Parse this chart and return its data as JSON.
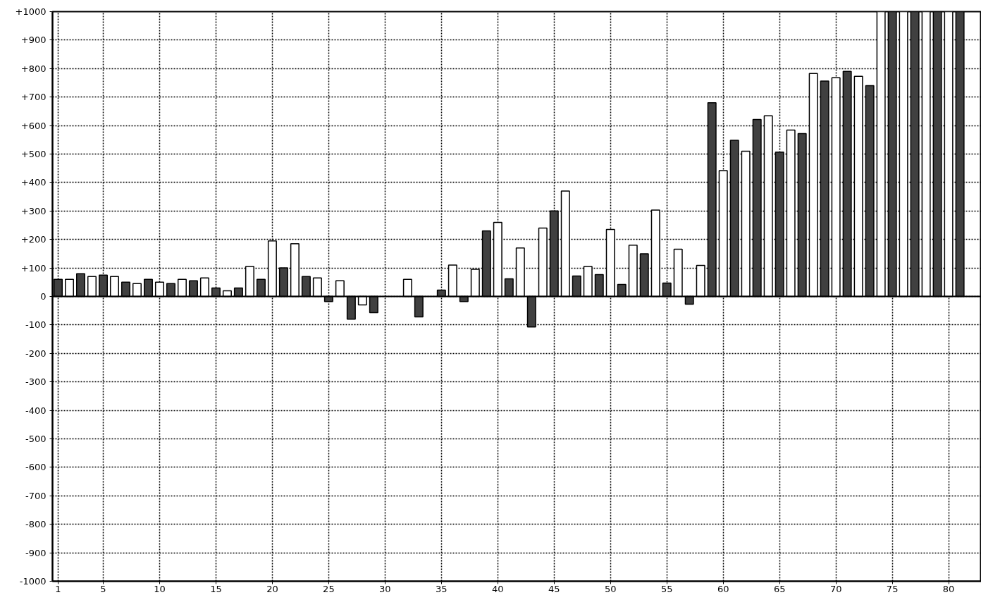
{
  "chart_data": {
    "type": "bar",
    "x": [
      1,
      2,
      3,
      4,
      5,
      6,
      7,
      8,
      9,
      10,
      11,
      12,
      13,
      14,
      15,
      16,
      17,
      18,
      19,
      20,
      21,
      22,
      23,
      24,
      25,
      26,
      27,
      28,
      29,
      30,
      31,
      32,
      33,
      34,
      35,
      36,
      37,
      38,
      39,
      40,
      41,
      42,
      43,
      44,
      45,
      46,
      47,
      48,
      49,
      50,
      51,
      52,
      53,
      54,
      55,
      56,
      57,
      58,
      59,
      60,
      61,
      62,
      63,
      64,
      65,
      66,
      67,
      68,
      69,
      70,
      71,
      72,
      73,
      74,
      75,
      76,
      77,
      78,
      79,
      80,
      81
    ],
    "series": [
      {
        "color": "#404040",
        "values": [
          60,
          null,
          80,
          null,
          75,
          null,
          50,
          null,
          60,
          null,
          45,
          null,
          55,
          null,
          30,
          null,
          30,
          null,
          60,
          null,
          100,
          null,
          70,
          null,
          -18,
          null,
          -80,
          null,
          -57,
          null,
          null,
          null,
          -72,
          null,
          22,
          null,
          -18,
          null,
          230,
          null,
          62,
          null,
          -107,
          null,
          300,
          null,
          72,
          null,
          77,
          null,
          42,
          null,
          150,
          null,
          47,
          null,
          -27,
          null,
          680,
          null,
          548,
          null,
          621,
          null,
          507,
          null,
          572,
          null,
          756,
          null,
          790,
          null,
          740,
          null,
          1000,
          null,
          1000,
          null,
          1000,
          null,
          1000
        ]
      },
      {
        "color": "#ffffff",
        "values": [
          null,
          60,
          null,
          70,
          null,
          70,
          null,
          45,
          null,
          50,
          null,
          60,
          null,
          65,
          null,
          20,
          null,
          105,
          null,
          195,
          null,
          185,
          null,
          65,
          null,
          55,
          null,
          -30,
          null,
          null,
          null,
          60,
          null,
          null,
          null,
          110,
          null,
          95,
          null,
          260,
          null,
          170,
          null,
          240,
          null,
          370,
          null,
          105,
          null,
          235,
          null,
          180,
          null,
          303,
          null,
          166,
          null,
          109,
          null,
          442,
          null,
          510,
          null,
          634,
          null,
          584,
          null,
          783,
          null,
          768,
          null,
          773,
          null,
          1000,
          null,
          1000,
          null,
          1000,
          null,
          1000,
          null
        ]
      }
    ],
    "xlim": [
      0.5,
      82.9
    ],
    "xticks": [
      1,
      5,
      10,
      15,
      20,
      25,
      30,
      35,
      40,
      45,
      50,
      55,
      60,
      65,
      70,
      75,
      80
    ],
    "ylim": [
      -1000,
      1000
    ],
    "yticks": [
      {
        "value": -1000,
        "label": "-1000"
      },
      {
        "value": -900,
        "label": "-900"
      },
      {
        "value": -800,
        "label": "-800"
      },
      {
        "value": -700,
        "label": "-700"
      },
      {
        "value": -600,
        "label": "-600"
      },
      {
        "value": -500,
        "label": "-500"
      },
      {
        "value": -400,
        "label": "-400"
      },
      {
        "value": -300,
        "label": "-300"
      },
      {
        "value": -200,
        "label": "-200"
      },
      {
        "value": -100,
        "label": "-100"
      },
      0,
      {
        "value": 100,
        "label": "+100"
      },
      {
        "value": 200,
        "label": "+200"
      },
      {
        "value": 300,
        "label": "+300"
      },
      {
        "value": 400,
        "label": "+400"
      },
      {
        "value": 500,
        "label": "+500"
      },
      {
        "value": 600,
        "label": "+600"
      },
      {
        "value": 700,
        "label": "+700"
      },
      {
        "value": 800,
        "label": "+800"
      },
      {
        "value": 900,
        "label": "+900"
      },
      {
        "value": 1000,
        "label": "+1000"
      }
    ],
    "grid": true
  }
}
